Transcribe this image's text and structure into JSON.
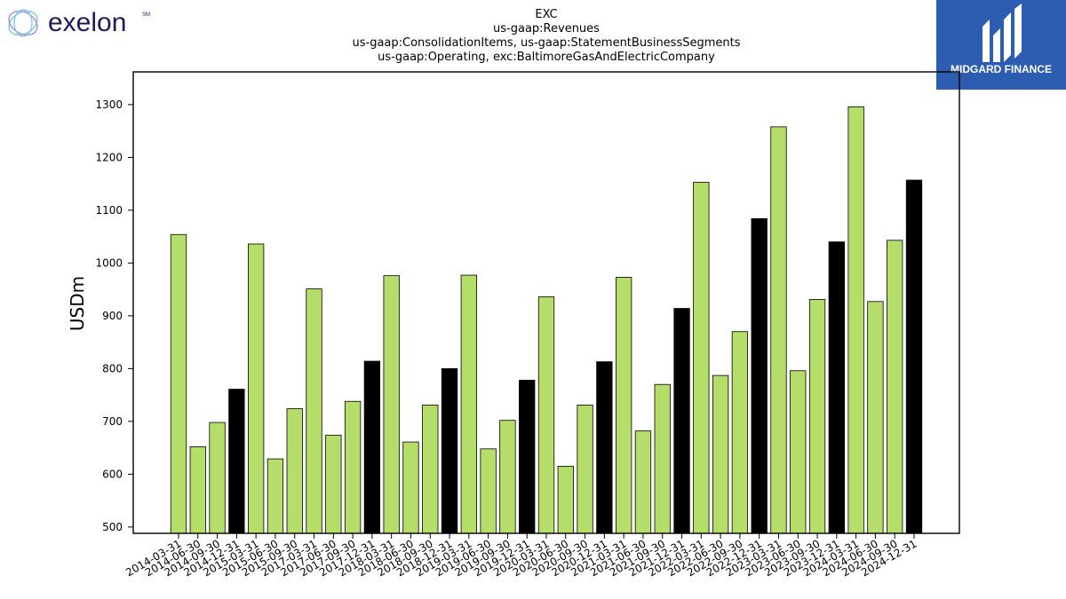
{
  "logos": {
    "left_name": "exelon",
    "left_mark": "SM",
    "right_name": "MIDGARD FINANCE"
  },
  "colors": {
    "bar_regular": "#b5dd6a",
    "bar_q4": "#000000",
    "logo_left_text": "#1f1a5e",
    "logo_right_bg": "#2d5db0"
  },
  "chart_data": {
    "type": "bar",
    "title_lines": [
      "EXC",
      "us-gaap:Revenues",
      "us-gaap:ConsolidationItems, us-gaap:StatementBusinessSegments",
      "us-gaap:Operating, exc:BaltimoreGasAndElectricCompany"
    ],
    "ylabel": "USDm",
    "xlabel": "",
    "ylim": [
      488,
      1362
    ],
    "yticks": [
      500,
      600,
      700,
      800,
      900,
      1000,
      1100,
      1200,
      1300
    ],
    "grid": false,
    "categories": [
      "2014-03-31",
      "2014-06-30",
      "2014-09-30",
      "2014-12-31",
      "2015-03-31",
      "2015-06-30",
      "2015-09-30",
      "2017-03-31",
      "2017-06-30",
      "2017-09-30",
      "2017-12-31",
      "2018-03-31",
      "2018-06-30",
      "2018-09-30",
      "2018-12-31",
      "2019-03-31",
      "2019-06-30",
      "2019-09-30",
      "2019-12-31",
      "2020-03-31",
      "2020-06-30",
      "2020-09-30",
      "2020-12-31",
      "2021-03-31",
      "2021-06-30",
      "2021-09-30",
      "2021-12-31",
      "2022-03-31",
      "2022-06-30",
      "2022-09-30",
      "2022-12-31",
      "2023-03-31",
      "2023-06-30",
      "2023-09-30",
      "2023-12-31",
      "2024-03-31",
      "2024-06-30",
      "2024-09-30",
      "2024-12-31"
    ],
    "values": [
      1054,
      652,
      698,
      761,
      1036,
      629,
      724,
      951,
      674,
      738,
      814,
      976,
      661,
      731,
      800,
      977,
      648,
      702,
      778,
      936,
      615,
      731,
      813,
      973,
      682,
      770,
      914,
      1153,
      787,
      870,
      1084,
      1258,
      796,
      931,
      1040,
      1296,
      927,
      1043,
      1157
    ],
    "highlighted": [
      false,
      false,
      false,
      true,
      false,
      false,
      false,
      false,
      false,
      false,
      true,
      false,
      false,
      false,
      true,
      false,
      false,
      false,
      true,
      false,
      false,
      false,
      true,
      false,
      false,
      false,
      true,
      false,
      false,
      false,
      true,
      false,
      false,
      false,
      true,
      false,
      false,
      false,
      true
    ]
  }
}
